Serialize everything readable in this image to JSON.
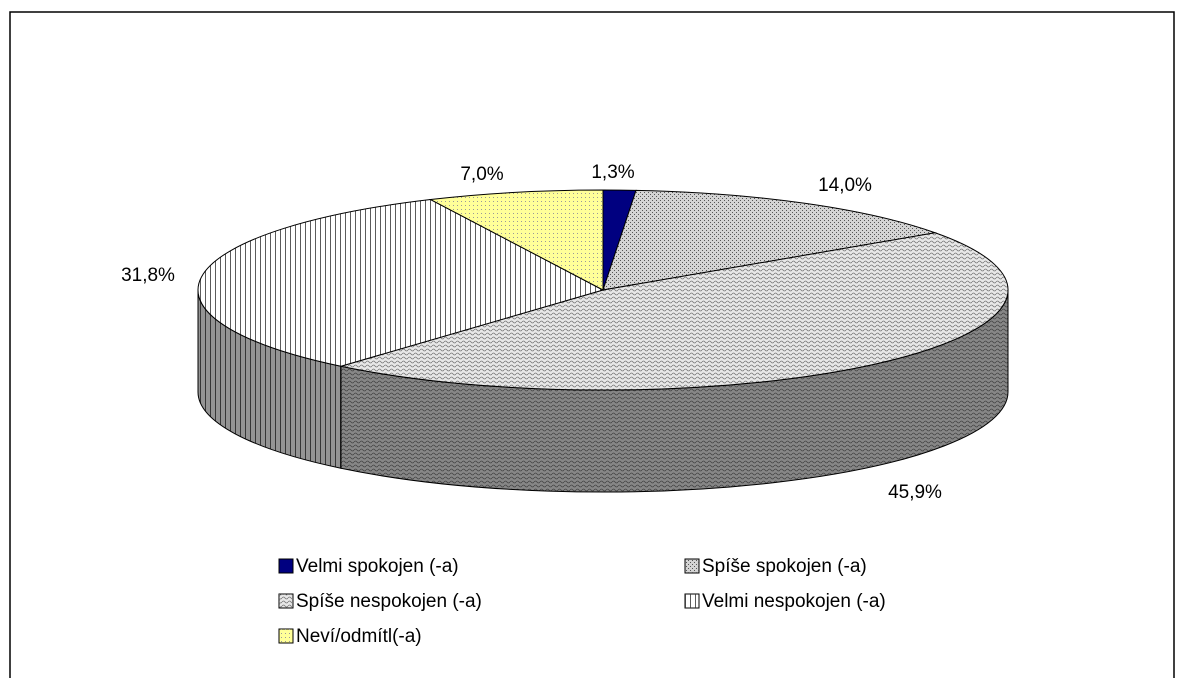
{
  "chart_data": {
    "type": "pie",
    "three_d": true,
    "categories": [
      "Velmi spokojen (-a)",
      "Spíše spokojen (-a)",
      "Spíše nespokojen (-a)",
      "Velmi nespokojen (-a)",
      "Neví/odmítl(-a)"
    ],
    "values": [
      1.3,
      14.0,
      45.9,
      31.8,
      7.0
    ],
    "value_labels": [
      "1,3%",
      "14,0%",
      "45,9%",
      "31,8%",
      "7,0%"
    ],
    "colors": [
      "#000080",
      "#d4d4d4",
      "#e8e8e8",
      "#ffffff",
      "#ffff99"
    ],
    "legend": "bottom"
  }
}
